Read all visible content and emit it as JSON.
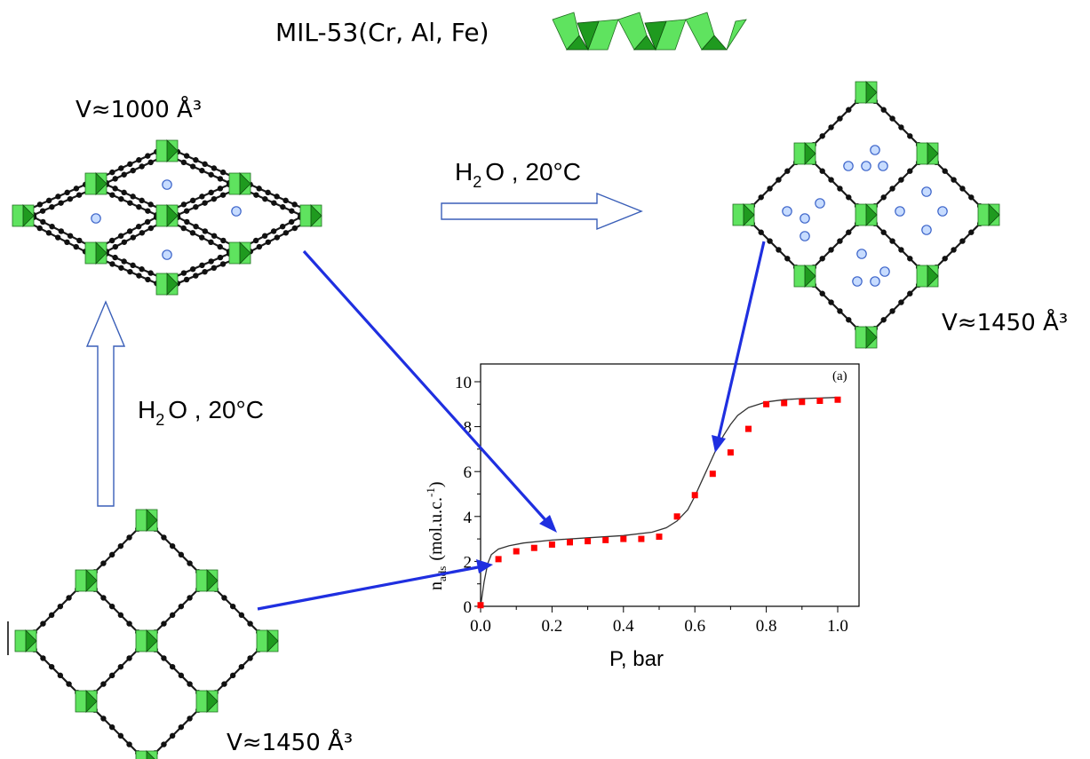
{
  "header": {
    "title": "MIL-53(Cr, Al, Fe)"
  },
  "structures": {
    "narrow_pore_volume": "V≈1000 Å³",
    "large_pore_volume_right": "V≈1450 Å³",
    "large_pore_volume_bottom": "V≈1450 Å³"
  },
  "conditions": {
    "top_arrow": {
      "base": "H",
      "sub": "2",
      "rest": "O , 20°C"
    },
    "left_arrow": {
      "base": "H",
      "sub": "2",
      "rest": "O , 20°C"
    }
  },
  "colors": {
    "octahedron_light": "#5fe35f",
    "octahedron_dark": "#1f9a1f",
    "water_fill": "#c7dcff",
    "pointer_arrow": "#1f2fe0",
    "data_points": "#ff0000"
  },
  "chart_data": {
    "type": "scatter",
    "panel_label": "(a)",
    "xlabel": "P, bar",
    "ylabel_main": "n",
    "ylabel_sub": "ads",
    "ylabel_unit": "(mol.u.c.",
    "ylabel_sup": "-1",
    "ylabel_close": ")",
    "xlim": [
      0.0,
      1.0
    ],
    "ylim": [
      0,
      10
    ],
    "x_ticks": [
      "0.0",
      "0.2",
      "0.4",
      "0.6",
      "0.8",
      "1.0"
    ],
    "y_ticks": [
      "0",
      "2",
      "4",
      "6",
      "8",
      "10"
    ],
    "grid": false,
    "series": [
      {
        "kind": "markers",
        "x": [
          0.0,
          0.05,
          0.1,
          0.15,
          0.2,
          0.25,
          0.3,
          0.35,
          0.4,
          0.45,
          0.5,
          0.55,
          0.6,
          0.65,
          0.7,
          0.75,
          0.8,
          0.85,
          0.9,
          0.95,
          1.0
        ],
        "y": [
          0.05,
          2.1,
          2.45,
          2.6,
          2.75,
          2.85,
          2.9,
          2.95,
          3.0,
          3.0,
          3.1,
          4.0,
          4.95,
          5.9,
          6.85,
          7.9,
          9.0,
          9.05,
          9.1,
          9.15,
          9.2
        ]
      },
      {
        "kind": "line",
        "x": [
          0.0,
          0.01,
          0.02,
          0.03,
          0.05,
          0.08,
          0.12,
          0.2,
          0.3,
          0.4,
          0.48,
          0.52,
          0.55,
          0.58,
          0.6,
          0.62,
          0.64,
          0.66,
          0.68,
          0.7,
          0.72,
          0.75,
          0.8,
          0.85,
          0.9,
          1.0
        ],
        "y": [
          0.0,
          1.1,
          1.9,
          2.3,
          2.55,
          2.7,
          2.82,
          2.95,
          3.05,
          3.15,
          3.3,
          3.5,
          3.8,
          4.3,
          4.9,
          5.6,
          6.3,
          7.0,
          7.6,
          8.1,
          8.5,
          8.85,
          9.1,
          9.2,
          9.25,
          9.3
        ]
      }
    ]
  }
}
